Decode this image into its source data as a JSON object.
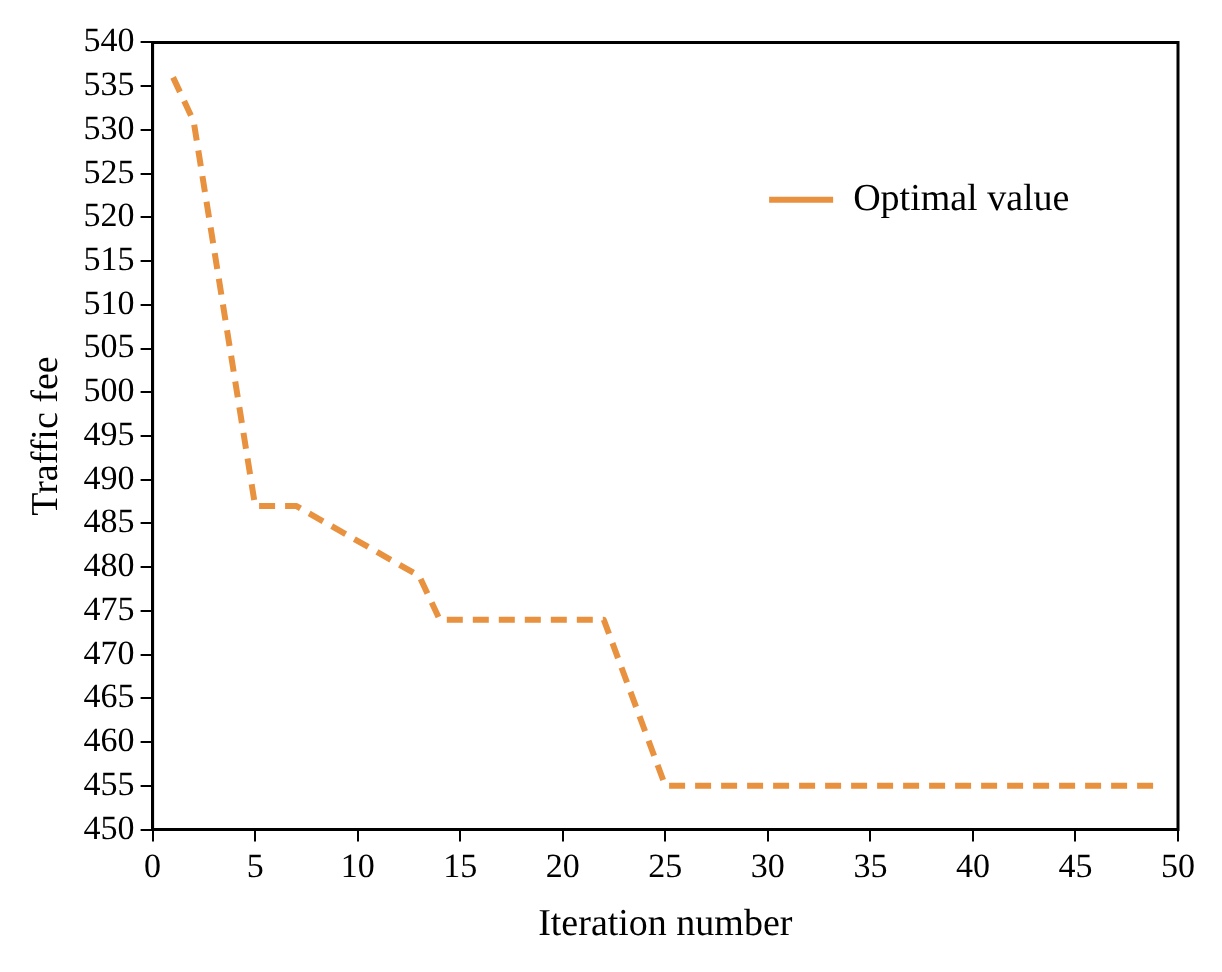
{
  "chart_data": {
    "type": "line",
    "xlabel": "Iteration number",
    "ylabel": "Traffic fee",
    "x": [
      1,
      2,
      5,
      7,
      13,
      14,
      22,
      25,
      49
    ],
    "series": [
      {
        "name": "Optimal value",
        "color": "#e8913f",
        "values": [
          536,
          531,
          487,
          487,
          479,
          474,
          474,
          455,
          455
        ]
      }
    ],
    "xlim": [
      0,
      50
    ],
    "xticks": [
      0,
      5,
      10,
      15,
      20,
      25,
      30,
      35,
      40,
      45,
      50
    ],
    "ylim": [
      450,
      540
    ],
    "yticks": [
      450,
      455,
      460,
      465,
      470,
      475,
      480,
      485,
      490,
      495,
      500,
      505,
      510,
      515,
      520,
      525,
      530,
      535,
      540
    ],
    "grid": false,
    "legend": "top right",
    "marker": "none",
    "line_style": "dashed"
  }
}
